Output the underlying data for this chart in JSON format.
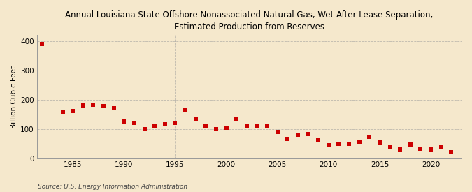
{
  "title": "Annual Louisiana State Offshore Nonassociated Natural Gas, Wet After Lease Separation,\nEstimated Production from Reserves",
  "ylabel": "Billion Cubic Feet",
  "source": "Source: U.S. Energy Information Administration",
  "background_color": "#f5e8cc",
  "plot_background_color": "#f5e8cc",
  "marker_color": "#cc0000",
  "marker_size": 4,
  "years": [
    1982,
    1984,
    1985,
    1986,
    1987,
    1988,
    1989,
    1990,
    1991,
    1992,
    1993,
    1994,
    1995,
    1996,
    1997,
    1998,
    1999,
    2000,
    2001,
    2002,
    2003,
    2004,
    2005,
    2006,
    2007,
    2008,
    2009,
    2010,
    2011,
    2012,
    2013,
    2014,
    2015,
    2016,
    2017,
    2018,
    2019,
    2020,
    2021,
    2022
  ],
  "values": [
    390,
    158,
    160,
    180,
    182,
    177,
    170,
    125,
    120,
    100,
    110,
    115,
    120,
    163,
    133,
    108,
    100,
    104,
    136,
    110,
    110,
    112,
    90,
    65,
    80,
    82,
    62,
    45,
    50,
    50,
    57,
    72,
    53,
    40,
    30,
    47,
    33,
    30,
    38,
    20
  ],
  "ylim": [
    0,
    420
  ],
  "xlim": [
    1981.5,
    2023
  ],
  "yticks": [
    0,
    100,
    200,
    300,
    400
  ],
  "xticks": [
    1985,
    1990,
    1995,
    2000,
    2005,
    2010,
    2015,
    2020
  ],
  "grid_color": "#999999",
  "grid_style": "--",
  "grid_alpha": 0.6,
  "grid_linewidth": 0.6
}
